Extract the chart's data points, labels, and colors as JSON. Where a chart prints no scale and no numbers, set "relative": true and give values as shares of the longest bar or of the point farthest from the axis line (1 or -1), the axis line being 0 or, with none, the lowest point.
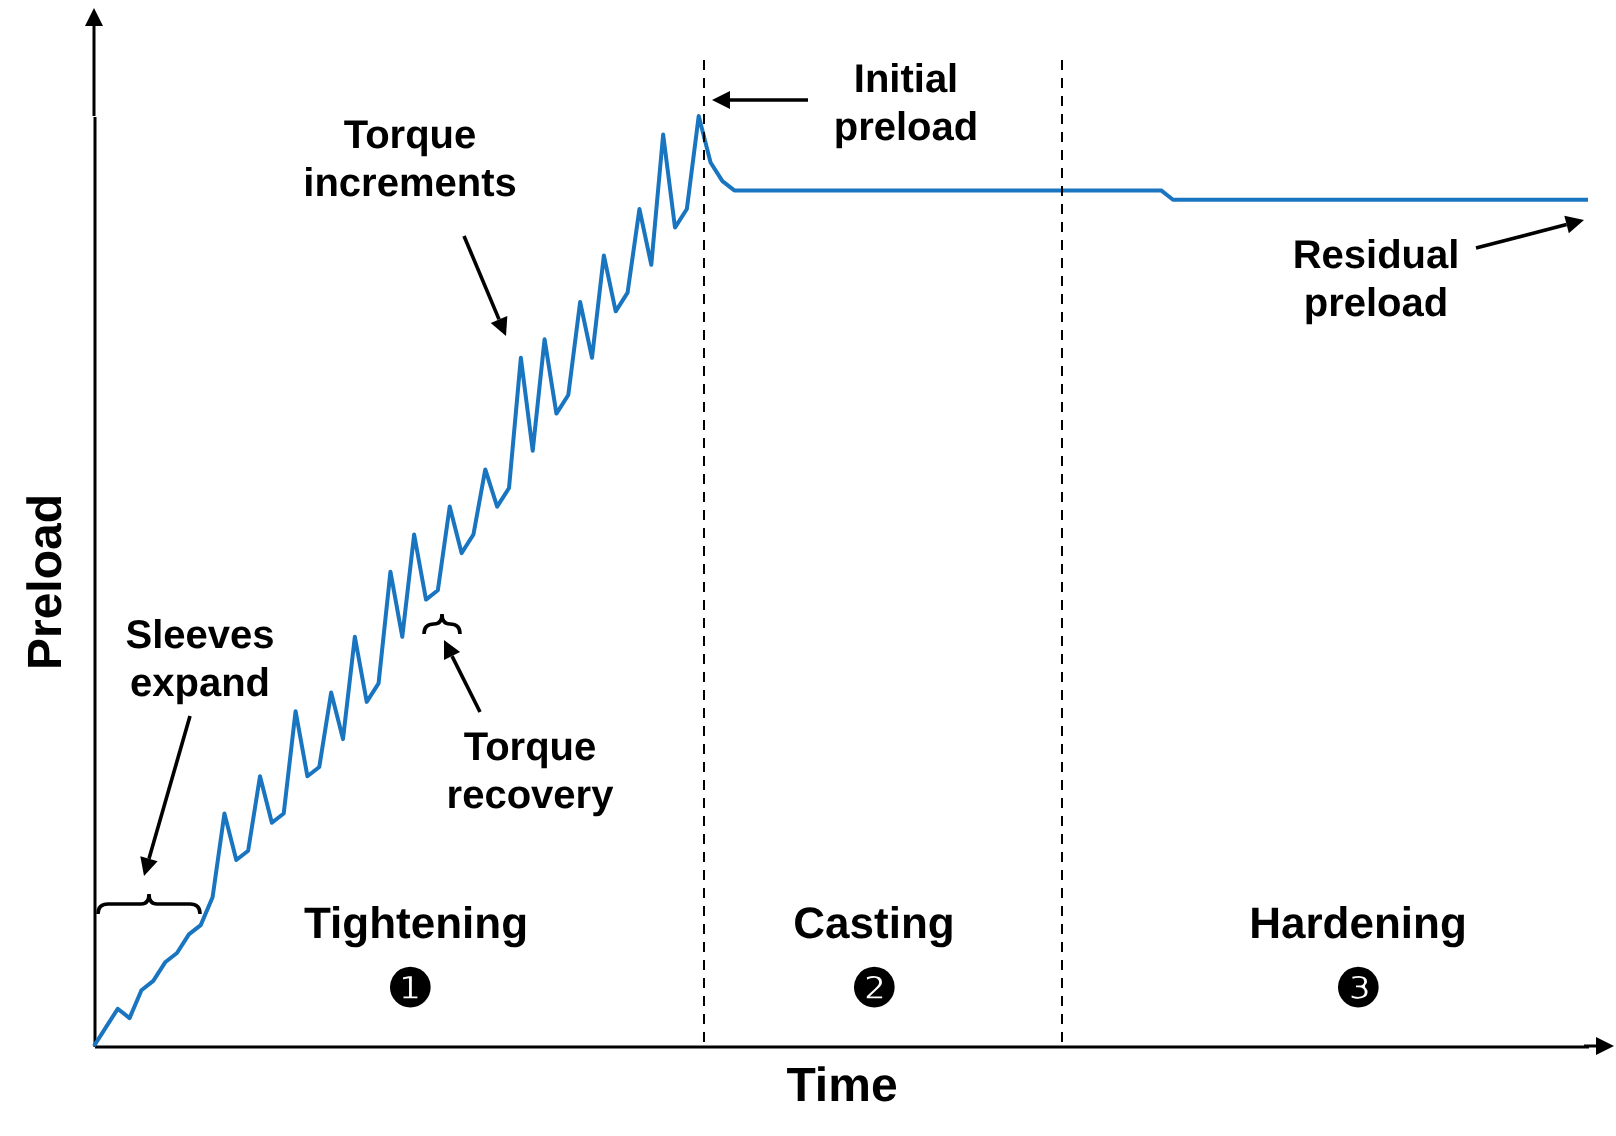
{
  "chart_data": {
    "type": "line",
    "relative": true,
    "xlabel": "Time",
    "ylabel": "Preload",
    "categories": [
      null,
      null,
      null,
      null,
      null,
      null,
      null,
      null,
      null,
      null,
      null,
      null,
      null,
      null,
      null,
      null,
      null,
      null,
      null,
      null,
      null,
      null,
      null,
      null,
      null,
      null,
      null,
      null,
      null,
      null,
      null,
      null,
      null,
      null,
      null,
      null,
      null,
      null,
      null,
      null,
      null,
      null,
      null,
      null,
      null,
      null,
      null,
      null,
      null,
      null,
      null,
      null,
      null,
      null,
      null,
      null,
      null,
      null,
      null,
      null,
      null,
      null,
      null,
      null,
      null,
      null,
      null,
      null,
      null,
      null,
      null,
      null,
      null,
      null,
      null,
      null,
      null,
      null,
      null,
      null,
      null,
      null,
      null,
      null,
      null,
      null,
      null,
      null,
      null,
      null,
      null,
      null,
      null,
      null,
      null,
      null,
      null,
      null,
      null,
      null,
      null,
      null,
      null,
      null,
      null,
      null,
      null,
      null,
      null,
      null,
      null,
      null,
      null,
      null,
      null,
      null,
      null,
      null,
      null,
      null,
      null,
      null,
      null,
      null,
      null,
      null,
      null
    ],
    "series": [
      {
        "color": "#1a75c0",
        "values": [
          0.0,
          0.02,
          0.04,
          0.03,
          0.06,
          0.07,
          0.09,
          0.1,
          0.12,
          0.13,
          0.16,
          0.25,
          0.2,
          0.21,
          0.29,
          0.24,
          0.25,
          0.36,
          0.29,
          0.3,
          0.38,
          0.33,
          0.44,
          0.37,
          0.39,
          0.51,
          0.44,
          0.55,
          0.48,
          0.49,
          0.58,
          0.53,
          0.55,
          0.62,
          0.58,
          0.6,
          0.74,
          0.64,
          0.76,
          0.68,
          0.7,
          0.8,
          0.74,
          0.85,
          0.79,
          0.81,
          0.9,
          0.84,
          0.98,
          0.88,
          0.9,
          1.0,
          0.95,
          0.93,
          0.92,
          0.92,
          0.92,
          0.92,
          0.92,
          0.92,
          0.92,
          0.92,
          0.92,
          0.92,
          0.92,
          0.92,
          0.92,
          0.92,
          0.92,
          0.92,
          0.92,
          0.92,
          0.92,
          0.92,
          0.92,
          0.92,
          0.92,
          0.92,
          0.92,
          0.92,
          0.92,
          0.92,
          0.92,
          0.92,
          0.92,
          0.92,
          0.92,
          0.92,
          0.92,
          0.92,
          0.92,
          0.91,
          0.91,
          0.91,
          0.91,
          0.91,
          0.91,
          0.91,
          0.91,
          0.91,
          0.91,
          0.91,
          0.91,
          0.91,
          0.91,
          0.91,
          0.91,
          0.91,
          0.91,
          0.91,
          0.91,
          0.91,
          0.91,
          0.91,
          0.91,
          0.91,
          0.91,
          0.91,
          0.91,
          0.91,
          0.91,
          0.91,
          0.91,
          0.91,
          0.91,
          0.91,
          0.91
        ]
      }
    ],
    "annotations": [
      "Sleeves\nexpand",
      "Torque\nincrements",
      "Torque\nrecovery",
      "Initial\npreload",
      "Residual\npreload",
      "Tightening",
      "Casting",
      "Hardening",
      "❶",
      "❷",
      "❸"
    ],
    "line_style": "solid"
  }
}
